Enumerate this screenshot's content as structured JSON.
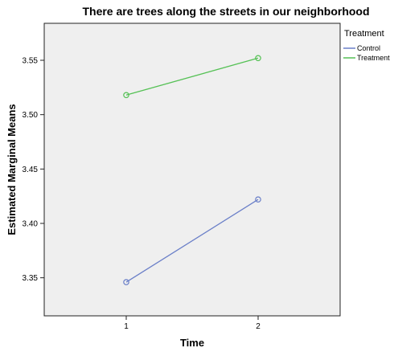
{
  "chart_data": {
    "type": "line",
    "title": "There are trees along the streets in our neighborhood",
    "xlabel": "Time",
    "ylabel": "Estimated Marginal Means",
    "categories": [
      "1",
      "2"
    ],
    "yticks": [
      "3.35",
      "3.40",
      "3.45",
      "3.50",
      "3.55"
    ],
    "ylim": [
      3.315,
      3.584
    ],
    "legend_title": "Treatment",
    "legend_position": "right",
    "grid": false,
    "background": "#efefef",
    "series": [
      {
        "name": "Control",
        "values": [
          3.346,
          3.422
        ],
        "color": "#6a7fc8"
      },
      {
        "name": "Treatment",
        "values": [
          3.518,
          3.552
        ],
        "color": "#55c155"
      }
    ]
  }
}
